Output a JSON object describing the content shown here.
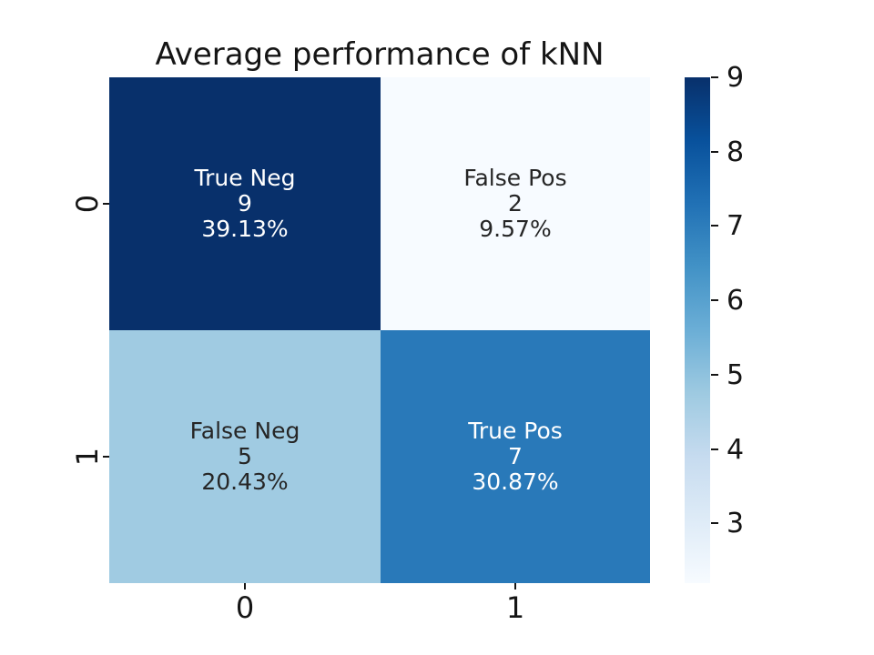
{
  "title": "Average performance of kNN",
  "chart_data": {
    "type": "heatmap",
    "colormap": "Blues",
    "x_tick_labels": [
      "0",
      "1"
    ],
    "y_tick_labels": [
      "0",
      "1"
    ],
    "vmin": 2.2,
    "vmax": 9.0,
    "grid": false,
    "legend_position": "colorbar-right",
    "cells": [
      {
        "row": 0,
        "col": 0,
        "label": "True Neg",
        "count": "9",
        "percent": "39.13%",
        "color_value": 9.0,
        "color": "#08306b",
        "text_color": "#ffffff"
      },
      {
        "row": 0,
        "col": 1,
        "label": "False Pos",
        "count": "2",
        "percent": "9.57%",
        "color_value": 2.2,
        "color": "#f7fbff",
        "text_color": "#262626"
      },
      {
        "row": 1,
        "col": 0,
        "label": "False Neg",
        "count": "5",
        "percent": "20.43%",
        "color_value": 4.7,
        "color": "#a0cbe2",
        "text_color": "#262626"
      },
      {
        "row": 1,
        "col": 1,
        "label": "True Pos",
        "count": "7",
        "percent": "30.87%",
        "color_value": 7.1,
        "color": "#2979b9",
        "text_color": "#ffffff"
      }
    ],
    "colorbar": {
      "ticks": [
        "9",
        "8",
        "7",
        "6",
        "5",
        "4",
        "3"
      ],
      "gradient_top_to_bottom": [
        "#08306b",
        "#08519c",
        "#2171b5",
        "#4292c6",
        "#6baed6",
        "#9ecae1",
        "#c6dbef",
        "#deebf7",
        "#f7fbff"
      ]
    }
  }
}
